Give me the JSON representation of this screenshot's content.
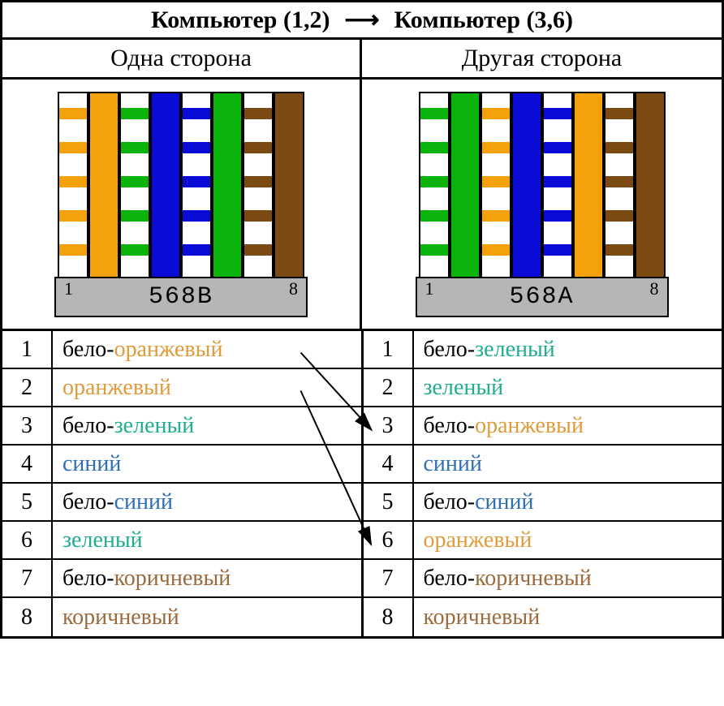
{
  "title": {
    "left": "Компьютер (1,2)",
    "right": "Компьютер (3,6)"
  },
  "headers": {
    "left": "Одна сторона",
    "right": "Другая сторона"
  },
  "colors": {
    "orange": "#f4a10c",
    "green": "#0bb40b",
    "blue": "#0b0bd6",
    "brown": "#7a4a12",
    "white": "#ffffff",
    "black": "#000000",
    "base": "#b6b6b6",
    "text_orange": "#e09b3a",
    "text_green": "#1fae8f",
    "text_blue": "#2f6fb3",
    "text_brown": "#9c6a3c"
  },
  "connectors": {
    "left": {
      "label": "568B",
      "pin_left": "1",
      "pin_right": "8",
      "wires": [
        {
          "type": "striped",
          "color": "orange"
        },
        {
          "type": "solid",
          "color": "orange"
        },
        {
          "type": "striped",
          "color": "green"
        },
        {
          "type": "solid",
          "color": "blue"
        },
        {
          "type": "striped",
          "color": "blue"
        },
        {
          "type": "solid",
          "color": "green"
        },
        {
          "type": "striped",
          "color": "brown"
        },
        {
          "type": "solid",
          "color": "brown"
        }
      ]
    },
    "right": {
      "label": "568A",
      "pin_left": "1",
      "pin_right": "8",
      "wires": [
        {
          "type": "striped",
          "color": "green"
        },
        {
          "type": "solid",
          "color": "green"
        },
        {
          "type": "striped",
          "color": "orange"
        },
        {
          "type": "solid",
          "color": "blue"
        },
        {
          "type": "striped",
          "color": "blue"
        },
        {
          "type": "solid",
          "color": "orange"
        },
        {
          "type": "striped",
          "color": "brown"
        },
        {
          "type": "solid",
          "color": "brown"
        }
      ]
    }
  },
  "rows": {
    "left": [
      {
        "n": "1",
        "parts": [
          {
            "t": "бело-",
            "c": "black"
          },
          {
            "t": "оранжевый",
            "c": "orange"
          }
        ]
      },
      {
        "n": "2",
        "parts": [
          {
            "t": "оранжевый",
            "c": "orange"
          }
        ]
      },
      {
        "n": "3",
        "parts": [
          {
            "t": "бело-",
            "c": "black"
          },
          {
            "t": "зеленый",
            "c": "green"
          }
        ]
      },
      {
        "n": "4",
        "parts": [
          {
            "t": "синий",
            "c": "blue"
          }
        ]
      },
      {
        "n": "5",
        "parts": [
          {
            "t": "бело-",
            "c": "black"
          },
          {
            "t": "синий",
            "c": "blue"
          }
        ]
      },
      {
        "n": "6",
        "parts": [
          {
            "t": "зеленый",
            "c": "green"
          }
        ]
      },
      {
        "n": "7",
        "parts": [
          {
            "t": "бело-",
            "c": "black"
          },
          {
            "t": "коричневый",
            "c": "brown"
          }
        ]
      },
      {
        "n": "8",
        "parts": [
          {
            "t": "коричневый",
            "c": "brown"
          }
        ]
      }
    ],
    "right": [
      {
        "n": "1",
        "parts": [
          {
            "t": "бело-",
            "c": "black"
          },
          {
            "t": "зеленый",
            "c": "green"
          }
        ]
      },
      {
        "n": "2",
        "parts": [
          {
            "t": "зеленый",
            "c": "green"
          }
        ]
      },
      {
        "n": "3",
        "parts": [
          {
            "t": "бело-",
            "c": "black"
          },
          {
            "t": "оранжевый",
            "c": "orange"
          }
        ]
      },
      {
        "n": "4",
        "parts": [
          {
            "t": "синий",
            "c": "blue"
          }
        ]
      },
      {
        "n": "5",
        "parts": [
          {
            "t": "бело-",
            "c": "black"
          },
          {
            "t": "синий",
            "c": "blue"
          }
        ]
      },
      {
        "n": "6",
        "parts": [
          {
            "t": "оранжевый",
            "c": "orange"
          }
        ]
      },
      {
        "n": "7",
        "parts": [
          {
            "t": "бело-",
            "c": "black"
          },
          {
            "t": "коричневый",
            "c": "brown"
          }
        ]
      },
      {
        "n": "8",
        "parts": [
          {
            "t": "коричневый",
            "c": "brown"
          }
        ]
      }
    ]
  },
  "stripe_positions": [
    18,
    60,
    102,
    144,
    186
  ],
  "crossover_arrows": [
    {
      "from_row": 1,
      "to_row": 3
    },
    {
      "from_row": 2,
      "to_row": 6
    }
  ]
}
